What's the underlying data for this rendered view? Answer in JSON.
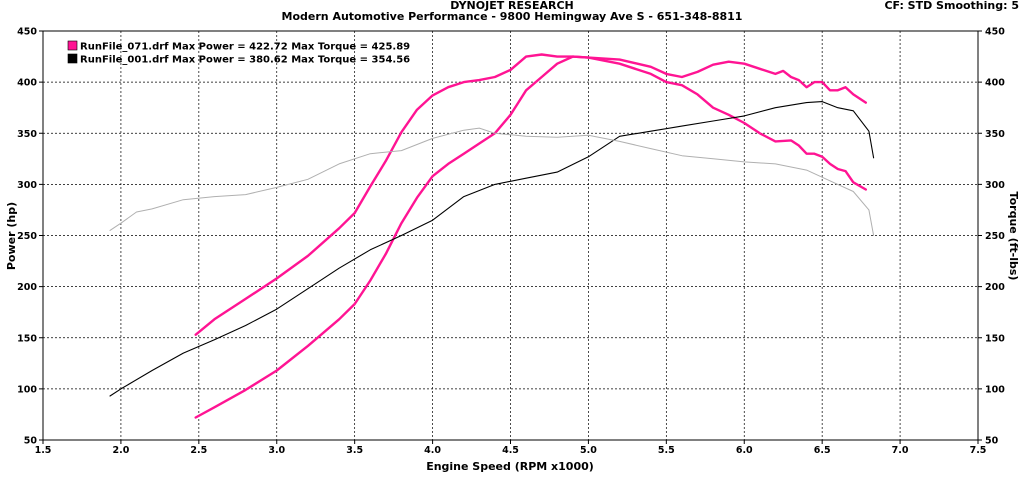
{
  "header": {
    "title": "DYNOJET RESEARCH",
    "subtitle": "Modern Automotive Performance - 9800 Hemingway Ave S - 651-348-8811",
    "info": "CF: STD  Smoothing: 5"
  },
  "colors": {
    "run071": "#ff1493",
    "run001": "#000000",
    "run001_torque": "#b0b0b0"
  },
  "chart_data": {
    "type": "line",
    "xlabel": "Engine Speed (RPM x1000)",
    "ylabel": "Power (hp)",
    "ylabel_right": "Torque (ft-lbs)",
    "xlim": [
      1.5,
      7.5
    ],
    "ylim": [
      50,
      450
    ],
    "ylim_right": [
      50,
      450
    ],
    "x_ticks": [
      "1.5",
      "2.0",
      "2.5",
      "3.0",
      "3.5",
      "4.0",
      "4.5",
      "5.0",
      "5.5",
      "6.0",
      "6.5",
      "7.0",
      "7.5"
    ],
    "y_ticks": [
      "50",
      "100",
      "150",
      "200",
      "250",
      "300",
      "350",
      "400",
      "450"
    ],
    "y_ticks_right": [
      "50",
      "100",
      "150",
      "200",
      "250",
      "300",
      "350",
      "400",
      "450"
    ],
    "grid": true,
    "legend_position": "top-left",
    "legend": [
      {
        "color": "#ff1493",
        "text": "RunFile_071.drf Max Power = 422.72 Max Torque = 425.89"
      },
      {
        "color": "#000000",
        "text": "RunFile_001.drf Max Power = 380.62 Max Torque = 354.56"
      }
    ],
    "series": [
      {
        "color": "#ff1493",
        "width": 2.4,
        "x": [
          2.48,
          2.6,
          2.8,
          3.0,
          3.2,
          3.4,
          3.5,
          3.6,
          3.7,
          3.8,
          3.9,
          4.0,
          4.1,
          4.2,
          4.3,
          4.4,
          4.5,
          4.55,
          4.6,
          4.7,
          4.8,
          4.9,
          5.0,
          5.2,
          5.4,
          5.5,
          5.6,
          5.7,
          5.8,
          5.9,
          6.0,
          6.1,
          6.2,
          6.25,
          6.3,
          6.35,
          6.4,
          6.45,
          6.5,
          6.55,
          6.6,
          6.65,
          6.7,
          6.78
        ],
        "y": [
          72,
          82,
          99,
          118,
          142,
          168,
          183,
          206,
          232,
          262,
          287,
          308,
          320,
          330,
          340,
          350,
          368,
          380,
          392,
          405,
          418,
          425,
          424,
          422,
          415,
          408,
          405,
          410,
          417,
          420,
          418,
          413,
          408,
          411,
          405,
          402,
          395,
          400,
          400,
          392,
          392,
          395,
          388,
          380
        ]
      },
      {
        "color": "#ff1493",
        "width": 2.4,
        "x": [
          2.48,
          2.6,
          2.8,
          3.0,
          3.2,
          3.4,
          3.5,
          3.6,
          3.7,
          3.8,
          3.9,
          4.0,
          4.1,
          4.2,
          4.3,
          4.4,
          4.5,
          4.6,
          4.7,
          4.8,
          4.9,
          5.0,
          5.2,
          5.4,
          5.5,
          5.6,
          5.7,
          5.8,
          5.9,
          6.0,
          6.1,
          6.2,
          6.3,
          6.35,
          6.4,
          6.45,
          6.5,
          6.55,
          6.6,
          6.65,
          6.7,
          6.78
        ],
        "y": [
          153,
          168,
          188,
          208,
          230,
          257,
          272,
          298,
          323,
          351,
          373,
          387,
          395,
          400,
          402,
          405,
          412,
          425,
          427,
          425,
          425,
          424,
          418,
          408,
          400,
          397,
          388,
          375,
          368,
          360,
          350,
          342,
          343,
          338,
          330,
          330,
          327,
          320,
          315,
          313,
          302,
          295
        ]
      },
      {
        "color": "#000000",
        "width": 1.1,
        "x": [
          1.93,
          2.0,
          2.2,
          2.4,
          2.6,
          2.8,
          3.0,
          3.2,
          3.4,
          3.6,
          3.8,
          4.0,
          4.2,
          4.4,
          4.6,
          4.8,
          5.0,
          5.2,
          5.4,
          5.6,
          5.8,
          6.0,
          6.2,
          6.4,
          6.5,
          6.6,
          6.7,
          6.8,
          6.83
        ],
        "y": [
          93,
          100,
          118,
          135,
          148,
          162,
          178,
          198,
          218,
          236,
          250,
          265,
          288,
          300,
          306,
          312,
          327,
          347,
          352,
          357,
          362,
          367,
          375,
          380,
          381,
          375,
          372,
          352,
          326
        ]
      },
      {
        "color": "#b0b0b0",
        "width": 1.0,
        "x": [
          1.93,
          2.0,
          2.1,
          2.2,
          2.4,
          2.6,
          2.8,
          3.0,
          3.2,
          3.4,
          3.6,
          3.8,
          4.0,
          4.2,
          4.3,
          4.4,
          4.6,
          4.8,
          5.0,
          5.2,
          5.4,
          5.6,
          5.8,
          6.0,
          6.2,
          6.4,
          6.6,
          6.7,
          6.8,
          6.83
        ],
        "y": [
          255,
          262,
          273,
          276,
          285,
          288,
          290,
          297,
          305,
          320,
          330,
          333,
          345,
          353,
          355,
          350,
          347,
          346,
          348,
          342,
          335,
          328,
          325,
          322,
          320,
          314,
          300,
          293,
          275,
          250
        ]
      }
    ]
  }
}
